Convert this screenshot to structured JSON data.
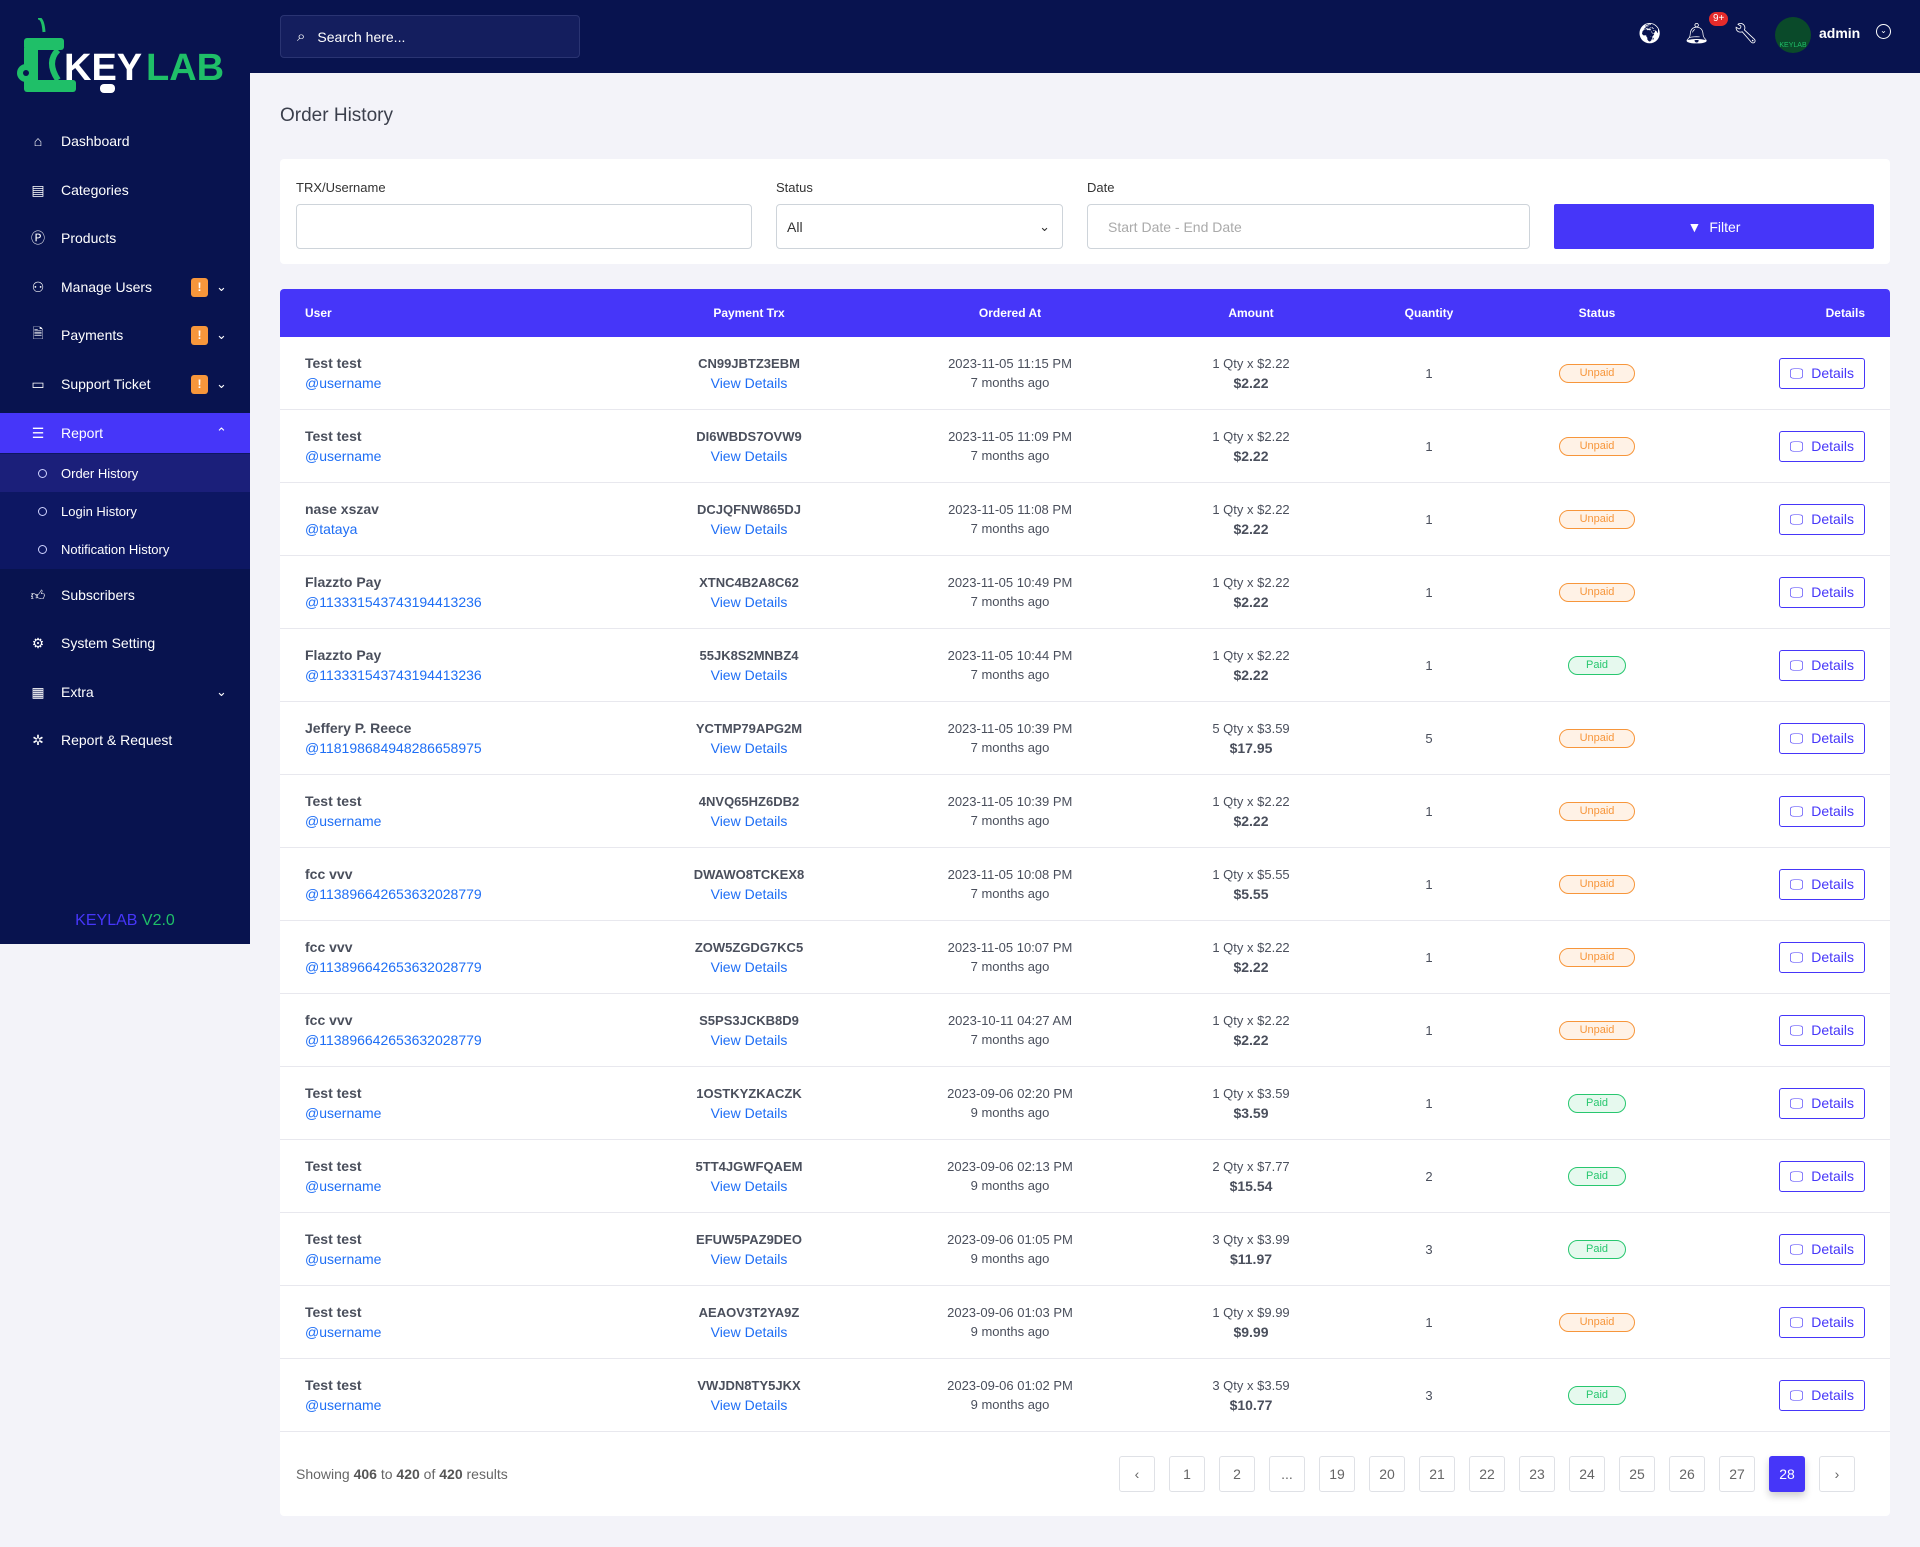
{
  "brand": {
    "logo_text_a": "KEY",
    "logo_text_b": "LAB",
    "version_a": "KEYLAB",
    "version_b": "V2.0",
    "colors": {
      "sidebar": "#08134f",
      "accent": "#4636f9",
      "logo_green": "#1fbf68",
      "badge_orange": "#f7963b"
    }
  },
  "sidebar": {
    "items": [
      {
        "label": "Dashboard",
        "icon": "home-icon"
      },
      {
        "label": "Categories",
        "icon": "clipboard-icon"
      },
      {
        "label": "Products",
        "icon": "product-circle-icon"
      },
      {
        "label": "Manage Users",
        "icon": "users-icon",
        "badge": "!",
        "chevron": "down"
      },
      {
        "label": "Payments",
        "icon": "invoice-dollar-icon",
        "badge": "!",
        "chevron": "down"
      },
      {
        "label": "Support Ticket",
        "icon": "ticket-icon",
        "badge": "!",
        "chevron": "down"
      },
      {
        "label": "Report",
        "icon": "list-icon",
        "chevron": "up",
        "active": true
      },
      {
        "label": "Subscribers",
        "icon": "thumbs-up-icon"
      },
      {
        "label": "System Setting",
        "icon": "settings-icon"
      },
      {
        "label": "Extra",
        "icon": "table-icon",
        "chevron": "down"
      },
      {
        "label": "Report & Request",
        "icon": "bug-icon"
      }
    ],
    "report_sub": [
      {
        "label": "Order History",
        "active": true
      },
      {
        "label": "Login History"
      },
      {
        "label": "Notification History"
      }
    ]
  },
  "topbar": {
    "search_placeholder": "Search here...",
    "notif_badge": "9+",
    "user": "admin",
    "avatar_text": "KEYLAB"
  },
  "page": {
    "title": "Order History"
  },
  "filter": {
    "trx_label": "TRX/Username",
    "trx_value": "",
    "status_label": "Status",
    "status_value": "All",
    "date_label": "Date",
    "date_placeholder": "Start Date - End Date",
    "button": "Filter"
  },
  "table": {
    "headers": [
      "User",
      "Payment Trx",
      "Ordered At",
      "Amount",
      "Quantity",
      "Status",
      "Details"
    ],
    "view_label": "View Details",
    "details_label": "Details",
    "rows": [
      {
        "name": "Test test",
        "handle": "@username",
        "trx": "CN99JBTZ3EBM",
        "date": "2023-11-05 11:15 PM",
        "ago": "7 months ago",
        "calc": "1 Qty x $2.22",
        "total": "$2.22",
        "qty": "1",
        "status": "Unpaid"
      },
      {
        "name": "Test test",
        "handle": "@username",
        "trx": "DI6WBDS7OVW9",
        "date": "2023-11-05 11:09 PM",
        "ago": "7 months ago",
        "calc": "1 Qty x $2.22",
        "total": "$2.22",
        "qty": "1",
        "status": "Unpaid"
      },
      {
        "name": "nase xszav",
        "handle": "@tataya",
        "trx": "DCJQFNW865DJ",
        "date": "2023-11-05 11:08 PM",
        "ago": "7 months ago",
        "calc": "1 Qty x $2.22",
        "total": "$2.22",
        "qty": "1",
        "status": "Unpaid"
      },
      {
        "name": "Flazzto Pay",
        "handle": "@113331543743194413236",
        "trx": "XTNC4B2A8C62",
        "date": "2023-11-05 10:49 PM",
        "ago": "7 months ago",
        "calc": "1 Qty x $2.22",
        "total": "$2.22",
        "qty": "1",
        "status": "Unpaid"
      },
      {
        "name": "Flazzto Pay",
        "handle": "@113331543743194413236",
        "trx": "55JK8S2MNBZ4",
        "date": "2023-11-05 10:44 PM",
        "ago": "7 months ago",
        "calc": "1 Qty x $2.22",
        "total": "$2.22",
        "qty": "1",
        "status": "Paid"
      },
      {
        "name": "Jeffery P. Reece",
        "handle": "@118198684948286658975",
        "trx": "YCTMP79APG2M",
        "date": "2023-11-05 10:39 PM",
        "ago": "7 months ago",
        "calc": "5 Qty x $3.59",
        "total": "$17.95",
        "qty": "5",
        "status": "Unpaid"
      },
      {
        "name": "Test test",
        "handle": "@username",
        "trx": "4NVQ65HZ6DB2",
        "date": "2023-11-05 10:39 PM",
        "ago": "7 months ago",
        "calc": "1 Qty x $2.22",
        "total": "$2.22",
        "qty": "1",
        "status": "Unpaid"
      },
      {
        "name": "fcc vvv",
        "handle": "@113896642653632028779",
        "trx": "DWAWO8TCKEX8",
        "date": "2023-11-05 10:08 PM",
        "ago": "7 months ago",
        "calc": "1 Qty x $5.55",
        "total": "$5.55",
        "qty": "1",
        "status": "Unpaid"
      },
      {
        "name": "fcc vvv",
        "handle": "@113896642653632028779",
        "trx": "ZOW5ZGDG7KC5",
        "date": "2023-11-05 10:07 PM",
        "ago": "7 months ago",
        "calc": "1 Qty x $2.22",
        "total": "$2.22",
        "qty": "1",
        "status": "Unpaid"
      },
      {
        "name": "fcc vvv",
        "handle": "@113896642653632028779",
        "trx": "S5PS3JCKB8D9",
        "date": "2023-10-11 04:27 AM",
        "ago": "7 months ago",
        "calc": "1 Qty x $2.22",
        "total": "$2.22",
        "qty": "1",
        "status": "Unpaid"
      },
      {
        "name": "Test test",
        "handle": "@username",
        "trx": "1OSTKYZKACZK",
        "date": "2023-09-06 02:20 PM",
        "ago": "9 months ago",
        "calc": "1 Qty x $3.59",
        "total": "$3.59",
        "qty": "1",
        "status": "Paid"
      },
      {
        "name": "Test test",
        "handle": "@username",
        "trx": "5TT4JGWFQAEM",
        "date": "2023-09-06 02:13 PM",
        "ago": "9 months ago",
        "calc": "2 Qty x $7.77",
        "total": "$15.54",
        "qty": "2",
        "status": "Paid"
      },
      {
        "name": "Test test",
        "handle": "@username",
        "trx": "EFUW5PAZ9DEO",
        "date": "2023-09-06 01:05 PM",
        "ago": "9 months ago",
        "calc": "3 Qty x $3.99",
        "total": "$11.97",
        "qty": "3",
        "status": "Paid"
      },
      {
        "name": "Test test",
        "handle": "@username",
        "trx": "AEAOV3T2YA9Z",
        "date": "2023-09-06 01:03 PM",
        "ago": "9 months ago",
        "calc": "1 Qty x $9.99",
        "total": "$9.99",
        "qty": "1",
        "status": "Unpaid"
      },
      {
        "name": "Test test",
        "handle": "@username",
        "trx": "VWJDN8TY5JKX",
        "date": "2023-09-06 01:02 PM",
        "ago": "9 months ago",
        "calc": "3 Qty x $3.59",
        "total": "$10.77",
        "qty": "3",
        "status": "Paid"
      }
    ]
  },
  "pagination": {
    "showing_prefix": "Showing",
    "from": "406",
    "to_word": "to",
    "to": "420",
    "of_word": "of",
    "total": "420",
    "results_word": "results",
    "prev": "‹",
    "next": "›",
    "pages": [
      "1",
      "2",
      "...",
      "19",
      "20",
      "21",
      "22",
      "23",
      "24",
      "25",
      "26",
      "27",
      "28"
    ],
    "current": "28"
  }
}
